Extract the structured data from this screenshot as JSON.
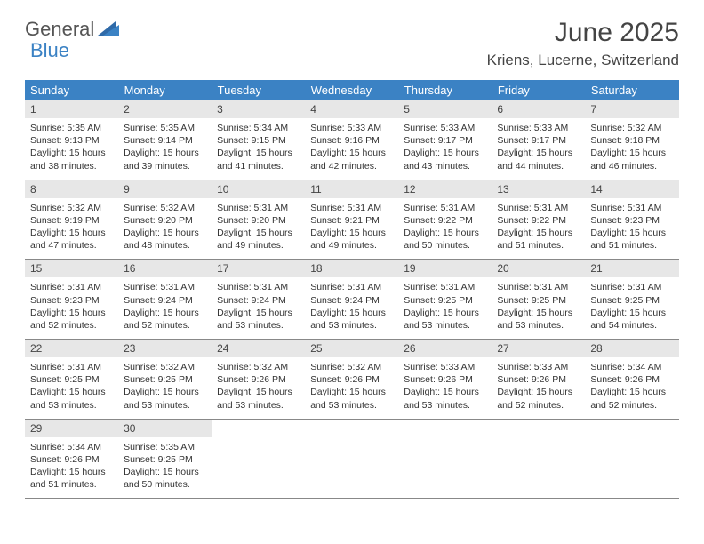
{
  "colors": {
    "header_bg": "#3b82c4",
    "header_text": "#ffffff",
    "daynum_bg": "#e7e7e7",
    "body_bg": "#ffffff",
    "text": "#333333",
    "rule": "#888888"
  },
  "logo": {
    "word1": "General",
    "word2": "Blue"
  },
  "title": "June 2025",
  "location": "Kriens, Lucerne, Switzerland",
  "weekdays": [
    "Sunday",
    "Monday",
    "Tuesday",
    "Wednesday",
    "Thursday",
    "Friday",
    "Saturday"
  ],
  "days": [
    {
      "n": "1",
      "sr": "Sunrise: 5:35 AM",
      "ss": "Sunset: 9:13 PM",
      "dl": "Daylight: 15 hours and 38 minutes."
    },
    {
      "n": "2",
      "sr": "Sunrise: 5:35 AM",
      "ss": "Sunset: 9:14 PM",
      "dl": "Daylight: 15 hours and 39 minutes."
    },
    {
      "n": "3",
      "sr": "Sunrise: 5:34 AM",
      "ss": "Sunset: 9:15 PM",
      "dl": "Daylight: 15 hours and 41 minutes."
    },
    {
      "n": "4",
      "sr": "Sunrise: 5:33 AM",
      "ss": "Sunset: 9:16 PM",
      "dl": "Daylight: 15 hours and 42 minutes."
    },
    {
      "n": "5",
      "sr": "Sunrise: 5:33 AM",
      "ss": "Sunset: 9:17 PM",
      "dl": "Daylight: 15 hours and 43 minutes."
    },
    {
      "n": "6",
      "sr": "Sunrise: 5:33 AM",
      "ss": "Sunset: 9:17 PM",
      "dl": "Daylight: 15 hours and 44 minutes."
    },
    {
      "n": "7",
      "sr": "Sunrise: 5:32 AM",
      "ss": "Sunset: 9:18 PM",
      "dl": "Daylight: 15 hours and 46 minutes."
    },
    {
      "n": "8",
      "sr": "Sunrise: 5:32 AM",
      "ss": "Sunset: 9:19 PM",
      "dl": "Daylight: 15 hours and 47 minutes."
    },
    {
      "n": "9",
      "sr": "Sunrise: 5:32 AM",
      "ss": "Sunset: 9:20 PM",
      "dl": "Daylight: 15 hours and 48 minutes."
    },
    {
      "n": "10",
      "sr": "Sunrise: 5:31 AM",
      "ss": "Sunset: 9:20 PM",
      "dl": "Daylight: 15 hours and 49 minutes."
    },
    {
      "n": "11",
      "sr": "Sunrise: 5:31 AM",
      "ss": "Sunset: 9:21 PM",
      "dl": "Daylight: 15 hours and 49 minutes."
    },
    {
      "n": "12",
      "sr": "Sunrise: 5:31 AM",
      "ss": "Sunset: 9:22 PM",
      "dl": "Daylight: 15 hours and 50 minutes."
    },
    {
      "n": "13",
      "sr": "Sunrise: 5:31 AM",
      "ss": "Sunset: 9:22 PM",
      "dl": "Daylight: 15 hours and 51 minutes."
    },
    {
      "n": "14",
      "sr": "Sunrise: 5:31 AM",
      "ss": "Sunset: 9:23 PM",
      "dl": "Daylight: 15 hours and 51 minutes."
    },
    {
      "n": "15",
      "sr": "Sunrise: 5:31 AM",
      "ss": "Sunset: 9:23 PM",
      "dl": "Daylight: 15 hours and 52 minutes."
    },
    {
      "n": "16",
      "sr": "Sunrise: 5:31 AM",
      "ss": "Sunset: 9:24 PM",
      "dl": "Daylight: 15 hours and 52 minutes."
    },
    {
      "n": "17",
      "sr": "Sunrise: 5:31 AM",
      "ss": "Sunset: 9:24 PM",
      "dl": "Daylight: 15 hours and 53 minutes."
    },
    {
      "n": "18",
      "sr": "Sunrise: 5:31 AM",
      "ss": "Sunset: 9:24 PM",
      "dl": "Daylight: 15 hours and 53 minutes."
    },
    {
      "n": "19",
      "sr": "Sunrise: 5:31 AM",
      "ss": "Sunset: 9:25 PM",
      "dl": "Daylight: 15 hours and 53 minutes."
    },
    {
      "n": "20",
      "sr": "Sunrise: 5:31 AM",
      "ss": "Sunset: 9:25 PM",
      "dl": "Daylight: 15 hours and 53 minutes."
    },
    {
      "n": "21",
      "sr": "Sunrise: 5:31 AM",
      "ss": "Sunset: 9:25 PM",
      "dl": "Daylight: 15 hours and 54 minutes."
    },
    {
      "n": "22",
      "sr": "Sunrise: 5:31 AM",
      "ss": "Sunset: 9:25 PM",
      "dl": "Daylight: 15 hours and 53 minutes."
    },
    {
      "n": "23",
      "sr": "Sunrise: 5:32 AM",
      "ss": "Sunset: 9:25 PM",
      "dl": "Daylight: 15 hours and 53 minutes."
    },
    {
      "n": "24",
      "sr": "Sunrise: 5:32 AM",
      "ss": "Sunset: 9:26 PM",
      "dl": "Daylight: 15 hours and 53 minutes."
    },
    {
      "n": "25",
      "sr": "Sunrise: 5:32 AM",
      "ss": "Sunset: 9:26 PM",
      "dl": "Daylight: 15 hours and 53 minutes."
    },
    {
      "n": "26",
      "sr": "Sunrise: 5:33 AM",
      "ss": "Sunset: 9:26 PM",
      "dl": "Daylight: 15 hours and 53 minutes."
    },
    {
      "n": "27",
      "sr": "Sunrise: 5:33 AM",
      "ss": "Sunset: 9:26 PM",
      "dl": "Daylight: 15 hours and 52 minutes."
    },
    {
      "n": "28",
      "sr": "Sunrise: 5:34 AM",
      "ss": "Sunset: 9:26 PM",
      "dl": "Daylight: 15 hours and 52 minutes."
    },
    {
      "n": "29",
      "sr": "Sunrise: 5:34 AM",
      "ss": "Sunset: 9:26 PM",
      "dl": "Daylight: 15 hours and 51 minutes."
    },
    {
      "n": "30",
      "sr": "Sunrise: 5:35 AM",
      "ss": "Sunset: 9:25 PM",
      "dl": "Daylight: 15 hours and 50 minutes."
    }
  ]
}
